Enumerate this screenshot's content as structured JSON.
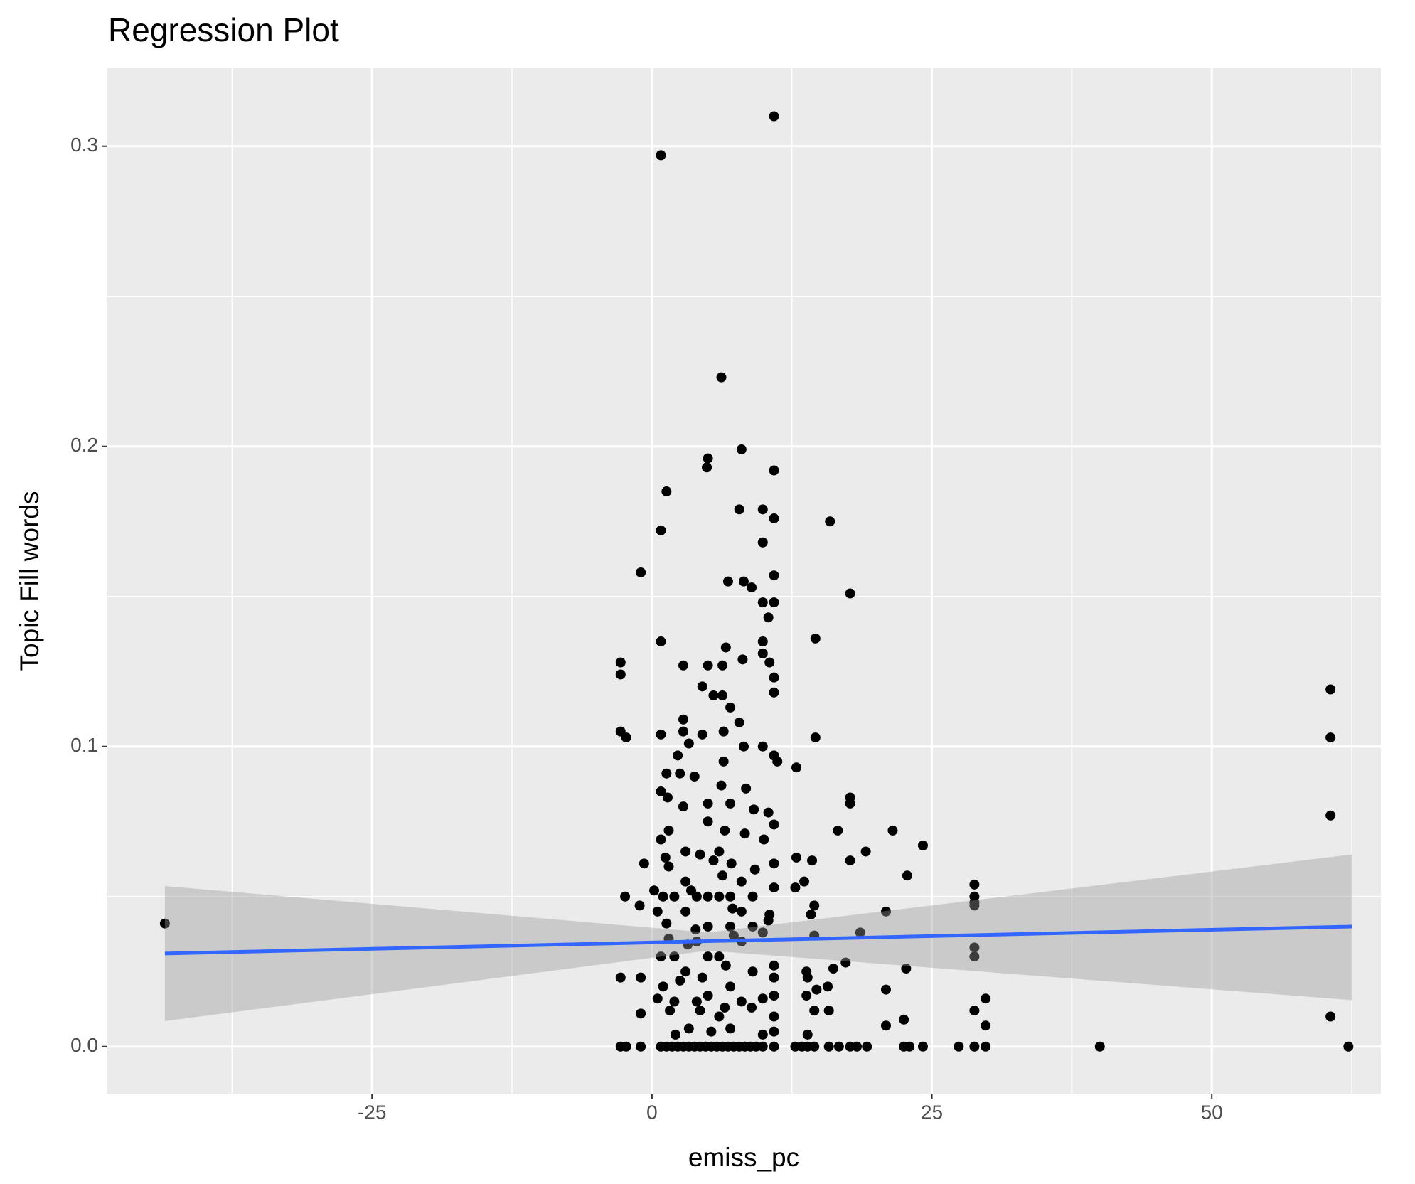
{
  "chart_data": {
    "type": "scatter",
    "title": "Regression Plot",
    "x_label": "emiss_pc",
    "y_label": "Topic Fill words",
    "xlim": [
      -48.7,
      65.1
    ],
    "ylim": [
      -0.0157,
      0.326
    ],
    "xticks": [
      -25,
      0,
      25,
      50
    ],
    "yticks": [
      {
        "value": 0,
        "label": "0.0"
      },
      0.1,
      0.2,
      0.3
    ],
    "x_minor_grid": [
      -37.5,
      -12.5,
      12.5,
      37.5,
      62.5
    ],
    "y_minor_grid": [
      0.05,
      0.15,
      0.25
    ],
    "grid": true,
    "points": {
      "color": "#000000",
      "x": [
        -43.5,
        0.8,
        10.9,
        6.2,
        8,
        5,
        4.9,
        10.9,
        1.3,
        0.8,
        7.8,
        9.9,
        10.9,
        15.9,
        9.9,
        -1,
        10.9,
        6.8,
        8.2,
        8.9,
        17.7,
        9.9,
        10.9,
        10.4,
        0.8,
        9.9,
        14.6,
        6.6,
        9.9,
        -2.8,
        -2.8,
        2.8,
        5,
        6.3,
        8.1,
        10.5,
        10.9,
        4.5,
        5.5,
        6.3,
        10.9,
        7,
        7.8,
        2.8,
        2.8,
        -2.8,
        -2.3,
        0.8,
        4.5,
        6.4,
        14.6,
        3.3,
        8.2,
        9.9,
        10.9,
        11.2,
        2.3,
        6.4,
        12.9,
        1.3,
        2.5,
        3.8,
        8.4,
        6.2,
        0.8,
        1.4,
        17.7,
        17.7,
        5,
        7,
        2.8,
        9.1,
        10.4,
        1.5,
        5,
        10.9,
        16.6,
        21.5,
        6.5,
        8.3,
        10,
        0.8,
        24.2,
        19.1,
        4.3,
        1.2,
        12.9,
        14.3,
        17.7,
        -0.7,
        5.5,
        7.1,
        10.9,
        9.2,
        22.8,
        6.3,
        13.6,
        28.8,
        12.8,
        0.2,
        3.5,
        10.9,
        -2.4,
        28.8,
        28.8,
        -1.1,
        14.5,
        28.8,
        20.9,
        7.2,
        10.5,
        14.2,
        0.5,
        1.3,
        10.4,
        3.9,
        18.6,
        9.9,
        7.3,
        14.5,
        1.5,
        3.2,
        28.8,
        28.8,
        17.3,
        0.8,
        16.2,
        22.7,
        6.6,
        10.9,
        13.8,
        -2.8,
        -1,
        2.5,
        4.5,
        10.9,
        13.9,
        15.7,
        14.7,
        20.9,
        0.5,
        13.8,
        5,
        9.9,
        10.9,
        29.8,
        28.8,
        14.5,
        15.8,
        -1,
        1.6,
        4.3,
        6.5,
        8.9,
        10.9,
        60.6,
        60.6,
        60.6,
        60.6,
        22.5,
        20.9,
        29.8,
        3.3,
        5.3,
        9.9,
        13.9,
        2.1,
        7,
        10.9,
        1,
        2,
        3,
        4,
        5,
        6,
        7,
        8,
        9,
        2,
        3,
        5,
        7,
        8,
        1.5,
        6,
        4,
        8,
        3,
        9,
        2,
        6,
        7,
        4,
        5,
        1,
        3,
        8,
        9,
        6,
        -2.8,
        -2.3,
        -1,
        0.8,
        1.3,
        1.8,
        2.3,
        2.8,
        3.3,
        3.8,
        4.3,
        4.8,
        5.3,
        5.8,
        6.3,
        6.8,
        7.3,
        7.8,
        8.3,
        8.8,
        9.3,
        9.9,
        10.9,
        12.8,
        13.4,
        13.9,
        14.5,
        15.8,
        16.7,
        17.7,
        18.3,
        19.2,
        22.5,
        23,
        24.2,
        27.4,
        28.8,
        29.8,
        40,
        62.2
      ],
      "y": [
        0.041,
        0.297,
        0.31,
        0.223,
        0.199,
        0.196,
        0.193,
        0.192,
        0.185,
        0.172,
        0.179,
        0.179,
        0.176,
        0.175,
        0.168,
        0.158,
        0.157,
        0.155,
        0.155,
        0.153,
        0.151,
        0.148,
        0.148,
        0.143,
        0.135,
        0.135,
        0.136,
        0.133,
        0.131,
        0.128,
        0.124,
        0.127,
        0.127,
        0.127,
        0.129,
        0.128,
        0.123,
        0.12,
        0.117,
        0.117,
        0.118,
        0.113,
        0.108,
        0.109,
        0.105,
        0.105,
        0.103,
        0.104,
        0.104,
        0.105,
        0.103,
        0.101,
        0.1,
        0.1,
        0.097,
        0.095,
        0.097,
        0.095,
        0.093,
        0.091,
        0.091,
        0.09,
        0.086,
        0.087,
        0.085,
        0.083,
        0.083,
        0.081,
        0.081,
        0.081,
        0.08,
        0.079,
        0.078,
        0.072,
        0.075,
        0.074,
        0.072,
        0.072,
        0.072,
        0.071,
        0.069,
        0.069,
        0.067,
        0.065,
        0.064,
        0.063,
        0.063,
        0.062,
        0.062,
        0.061,
        0.062,
        0.061,
        0.061,
        0.059,
        0.057,
        0.057,
        0.055,
        0.054,
        0.053,
        0.052,
        0.052,
        0.053,
        0.05,
        0.05,
        0.048,
        0.047,
        0.047,
        0.047,
        0.045,
        0.046,
        0.044,
        0.044,
        0.045,
        0.041,
        0.042,
        0.039,
        0.038,
        0.038,
        0.037,
        0.037,
        0.036,
        0.034,
        0.033,
        0.03,
        0.028,
        0.03,
        0.026,
        0.026,
        0.027,
        0.027,
        0.025,
        0.023,
        0.023,
        0.022,
        0.023,
        0.023,
        0.023,
        0.02,
        0.019,
        0.019,
        0.016,
        0.017,
        0.017,
        0.016,
        0.017,
        0.016,
        0.012,
        0.012,
        0.012,
        0.011,
        0.012,
        0.012,
        0.013,
        0.013,
        0.01,
        0.01,
        0.077,
        0.103,
        0.119,
        0.009,
        0.007,
        0.007,
        0.006,
        0.005,
        0.004,
        0.004,
        0.004,
        0.006,
        0.005,
        0.02,
        0.03,
        0.025,
        0.035,
        0.04,
        0.03,
        0.02,
        0.045,
        0.025,
        0.05,
        0.055,
        0.05,
        0.05,
        0.035,
        0.06,
        0.065,
        0.015,
        0.015,
        0.045,
        0.05,
        0.015,
        0.01,
        0.04,
        0.05,
        0.03,
        0.05,
        0.065,
        0.055,
        0.04,
        0.05,
        0,
        0,
        0,
        0,
        0,
        0,
        0,
        0,
        0,
        0,
        0,
        0,
        0,
        0,
        0,
        0,
        0,
        0,
        0,
        0,
        0,
        0,
        0,
        0,
        0,
        0,
        0,
        0,
        0,
        0,
        0,
        0,
        0,
        0,
        0,
        0,
        0,
        0,
        0,
        0
      ]
    },
    "fit": {
      "color": "#3366ff",
      "x": [
        -43.5,
        62.5
      ],
      "y": [
        0.031,
        0.04
      ]
    },
    "band": {
      "color": "#999999",
      "x": [
        -43.5,
        5,
        62.5
      ],
      "lower": [
        0.0085,
        0.032,
        0.0155
      ],
      "upper": [
        0.0535,
        0.038,
        0.064
      ]
    }
  }
}
